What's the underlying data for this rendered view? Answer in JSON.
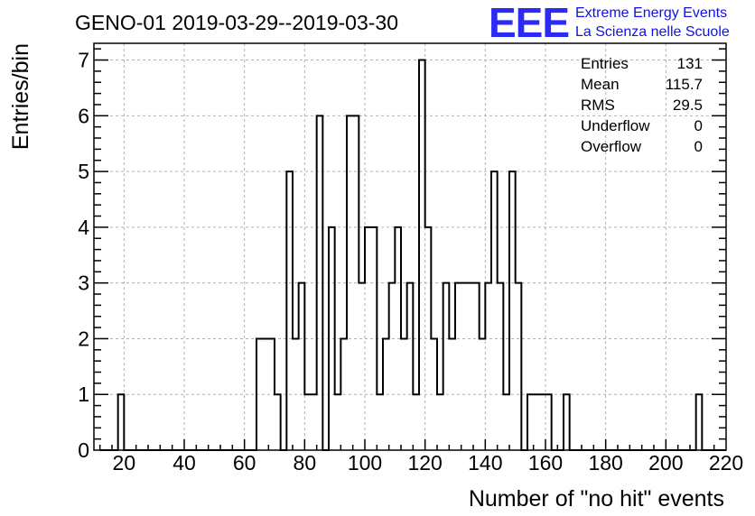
{
  "title": "GENO-01 2019-03-29--2019-03-30",
  "logo": {
    "mark": "EEE",
    "line1": "Extreme Energy Events",
    "line2": "La Scienza nelle Scuole",
    "color": "#1f1fee"
  },
  "stats": {
    "entries_label": "Entries",
    "entries_value": "131",
    "mean_label": "Mean",
    "mean_value": "115.7",
    "rms_label": "RMS",
    "rms_value": "29.5",
    "underflow_label": "Underflow",
    "underflow_value": "0",
    "overflow_label": "Overflow",
    "overflow_value": "0"
  },
  "chart_data": {
    "type": "histogram",
    "title": "GENO-01 2019-03-29--2019-03-30",
    "xlabel": "Number of \"no hit\" events",
    "ylabel": "Entries/bin",
    "xlim": [
      10,
      220
    ],
    "ylim": [
      0,
      7.3
    ],
    "bin_width": 2,
    "x_ticks": [
      "20",
      "40",
      "60",
      "80",
      "100",
      "120",
      "140",
      "160",
      "180",
      "200",
      "220"
    ],
    "y_ticks": [
      "0",
      "1",
      "2",
      "3",
      "4",
      "5",
      "6",
      "7"
    ],
    "grid": true,
    "bins": [
      {
        "x": 18,
        "y": 1
      },
      {
        "x": 64,
        "y": 2
      },
      {
        "x": 66,
        "y": 2
      },
      {
        "x": 68,
        "y": 2
      },
      {
        "x": 70,
        "y": 1
      },
      {
        "x": 74,
        "y": 5
      },
      {
        "x": 76,
        "y": 2
      },
      {
        "x": 78,
        "y": 3
      },
      {
        "x": 80,
        "y": 1
      },
      {
        "x": 82,
        "y": 1
      },
      {
        "x": 84,
        "y": 6
      },
      {
        "x": 88,
        "y": 4
      },
      {
        "x": 90,
        "y": 1
      },
      {
        "x": 92,
        "y": 2
      },
      {
        "x": 94,
        "y": 6
      },
      {
        "x": 96,
        "y": 6
      },
      {
        "x": 98,
        "y": 3
      },
      {
        "x": 100,
        "y": 4
      },
      {
        "x": 102,
        "y": 4
      },
      {
        "x": 104,
        "y": 1
      },
      {
        "x": 106,
        "y": 2
      },
      {
        "x": 108,
        "y": 3
      },
      {
        "x": 110,
        "y": 4
      },
      {
        "x": 112,
        "y": 2
      },
      {
        "x": 114,
        "y": 3
      },
      {
        "x": 116,
        "y": 1
      },
      {
        "x": 118,
        "y": 7
      },
      {
        "x": 120,
        "y": 4
      },
      {
        "x": 122,
        "y": 2
      },
      {
        "x": 124,
        "y": 1
      },
      {
        "x": 126,
        "y": 3
      },
      {
        "x": 128,
        "y": 2
      },
      {
        "x": 130,
        "y": 3
      },
      {
        "x": 132,
        "y": 3
      },
      {
        "x": 134,
        "y": 3
      },
      {
        "x": 136,
        "y": 3
      },
      {
        "x": 138,
        "y": 2
      },
      {
        "x": 140,
        "y": 3
      },
      {
        "x": 142,
        "y": 5
      },
      {
        "x": 144,
        "y": 3
      },
      {
        "x": 146,
        "y": 1
      },
      {
        "x": 148,
        "y": 5
      },
      {
        "x": 150,
        "y": 3
      },
      {
        "x": 154,
        "y": 1
      },
      {
        "x": 156,
        "y": 1
      },
      {
        "x": 158,
        "y": 1
      },
      {
        "x": 160,
        "y": 1
      },
      {
        "x": 166,
        "y": 1
      },
      {
        "x": 210,
        "y": 1
      }
    ],
    "line_color": "#000000"
  }
}
